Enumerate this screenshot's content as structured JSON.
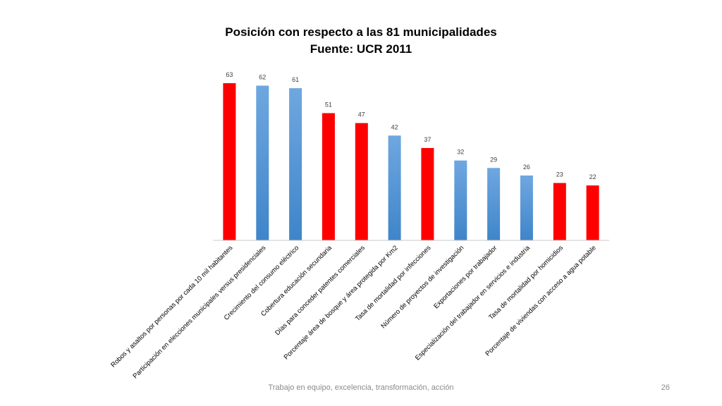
{
  "chart_data": {
    "type": "bar",
    "title": "Posición con respecto a las 81 municipalidades",
    "subtitle": "Fuente: UCR 2011",
    "categories": [
      "Robos y asaltos por personas por cada 10 mil habitantes",
      "Participación en elecciones municipales versus presidenciales",
      "Crecimiento del consumo eléctrico",
      "Cobertura educación secundaria",
      "Días para conceder patentes comerciales",
      "Porcentaje área de bosque y área protegida por Km2",
      "Tasa de mortalidad por infecciones",
      "Número de proyectos de investigación",
      "Exportaciones por trabajador",
      "Especialización del trabajador en servicios e industria",
      "Tasa de mortalidad por homicidios",
      "Porcentaje de viviendas con acceso a agua potable"
    ],
    "values": [
      63,
      62,
      61,
      51,
      47,
      42,
      37,
      32,
      29,
      26,
      23,
      22
    ],
    "bar_colors": [
      "red",
      "blue",
      "blue",
      "red",
      "red",
      "blue",
      "red",
      "blue",
      "blue",
      "blue",
      "red",
      "red"
    ],
    "colors": {
      "red": "#ff0000",
      "blue_top": "#6fa7e0",
      "blue_bottom": "#3f85c9"
    },
    "ylim": [
      0,
      70
    ],
    "grid": false,
    "legend": "none",
    "xlabel": "",
    "ylabel": ""
  },
  "footer": {
    "text": "Trabajo en equipo, excelencia, transformación, acción",
    "page": "26"
  }
}
